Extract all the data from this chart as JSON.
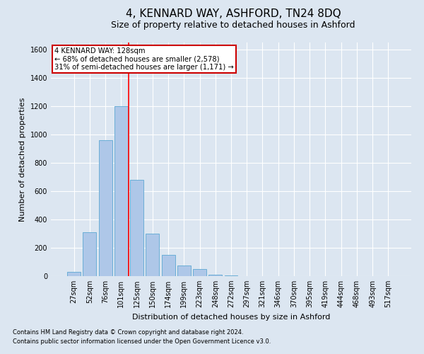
{
  "title": "4, KENNARD WAY, ASHFORD, TN24 8DQ",
  "subtitle": "Size of property relative to detached houses in Ashford",
  "xlabel": "Distribution of detached houses by size in Ashford",
  "ylabel": "Number of detached properties",
  "categories": [
    "27sqm",
    "52sqm",
    "76sqm",
    "101sqm",
    "125sqm",
    "150sqm",
    "174sqm",
    "199sqm",
    "223sqm",
    "248sqm",
    "272sqm",
    "297sqm",
    "321sqm",
    "346sqm",
    "370sqm",
    "395sqm",
    "419sqm",
    "444sqm",
    "468sqm",
    "493sqm",
    "517sqm"
  ],
  "values": [
    30,
    310,
    960,
    1200,
    680,
    300,
    150,
    75,
    50,
    10,
    5,
    2,
    0,
    0,
    2,
    0,
    0,
    1,
    0,
    0,
    1
  ],
  "bar_color": "#aec7e8",
  "bar_edge_color": "#6baed6",
  "background_color": "#dce6f1",
  "plot_bg_color": "#dce6f1",
  "annotation_title": "4 KENNARD WAY: 128sqm",
  "annotation_line1": "← 68% of detached houses are smaller (2,578)",
  "annotation_line2": "31% of semi-detached houses are larger (1,171) →",
  "ylim": [
    0,
    1650
  ],
  "yticks": [
    0,
    200,
    400,
    600,
    800,
    1000,
    1200,
    1400,
    1600
  ],
  "footer1": "Contains HM Land Registry data © Crown copyright and database right 2024.",
  "footer2": "Contains public sector information licensed under the Open Government Licence v3.0.",
  "title_fontsize": 11,
  "subtitle_fontsize": 9,
  "axis_fontsize": 8,
  "tick_fontsize": 7,
  "annotation_box_color": "#ffffff",
  "annotation_box_edge": "#cc0000",
  "redline_index": 3.5,
  "grid_color": "#ffffff"
}
